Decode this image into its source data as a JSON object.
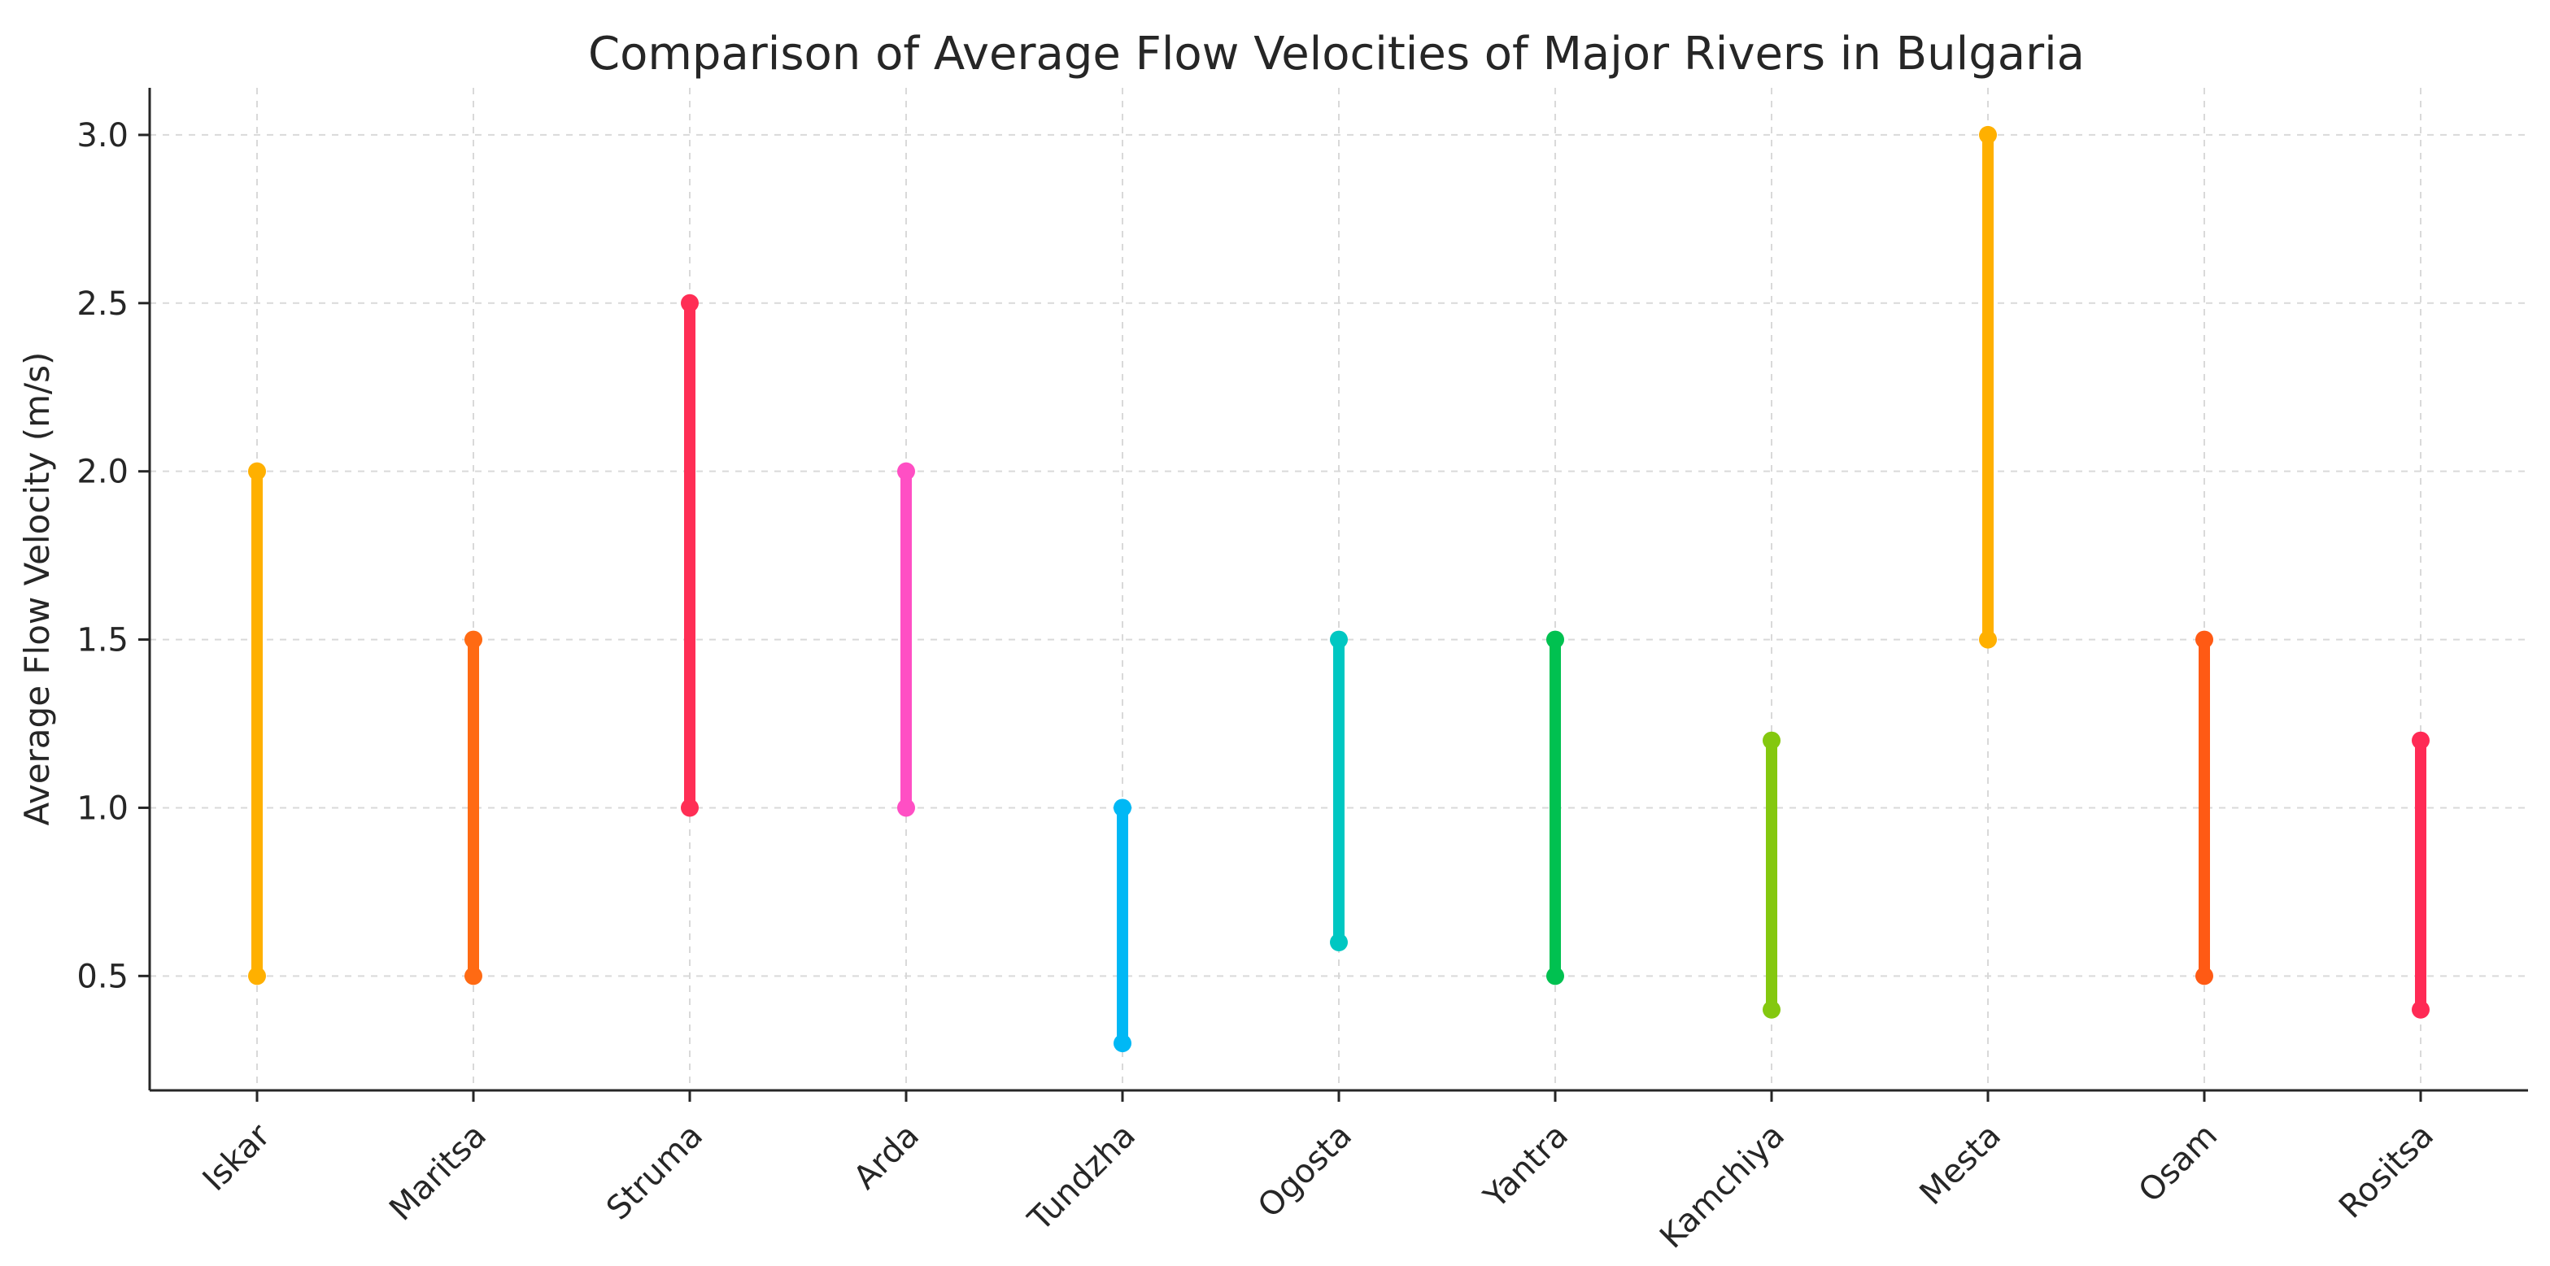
{
  "chart_data": {
    "type": "range",
    "title": "Comparison of Average Flow Velocities of Major Rivers in Bulgaria",
    "xlabel": "",
    "ylabel": "Average Flow Velocity (m/s)",
    "ylim": [
      0.16,
      3.14
    ],
    "yticks": [
      0.5,
      1.0,
      1.5,
      2.0,
      2.5,
      3.0
    ],
    "ytick_labels": [
      "0.5",
      "1.0",
      "1.5",
      "2.0",
      "2.5",
      "3.0"
    ],
    "grid": true,
    "categories": [
      "Iskar",
      "Maritsa",
      "Struma",
      "Arda",
      "Tundzha",
      "Ogosta",
      "Yantra",
      "Kamchiya",
      "Mesta",
      "Osam",
      "Rositsa"
    ],
    "min_values": [
      0.5,
      0.5,
      1.0,
      1.0,
      0.3,
      0.6,
      0.5,
      0.4,
      1.5,
      0.5,
      0.4
    ],
    "max_values": [
      2.0,
      1.5,
      2.5,
      2.0,
      1.0,
      1.5,
      1.5,
      1.2,
      3.0,
      1.5,
      1.2
    ],
    "colors": [
      "#FFB000",
      "#FF6A13",
      "#FF2E55",
      "#FF4FC4",
      "#00B8F5",
      "#00C7C2",
      "#00C150",
      "#84C80F",
      "#FFB000",
      "#FF5A14",
      "#FF2A55"
    ]
  }
}
